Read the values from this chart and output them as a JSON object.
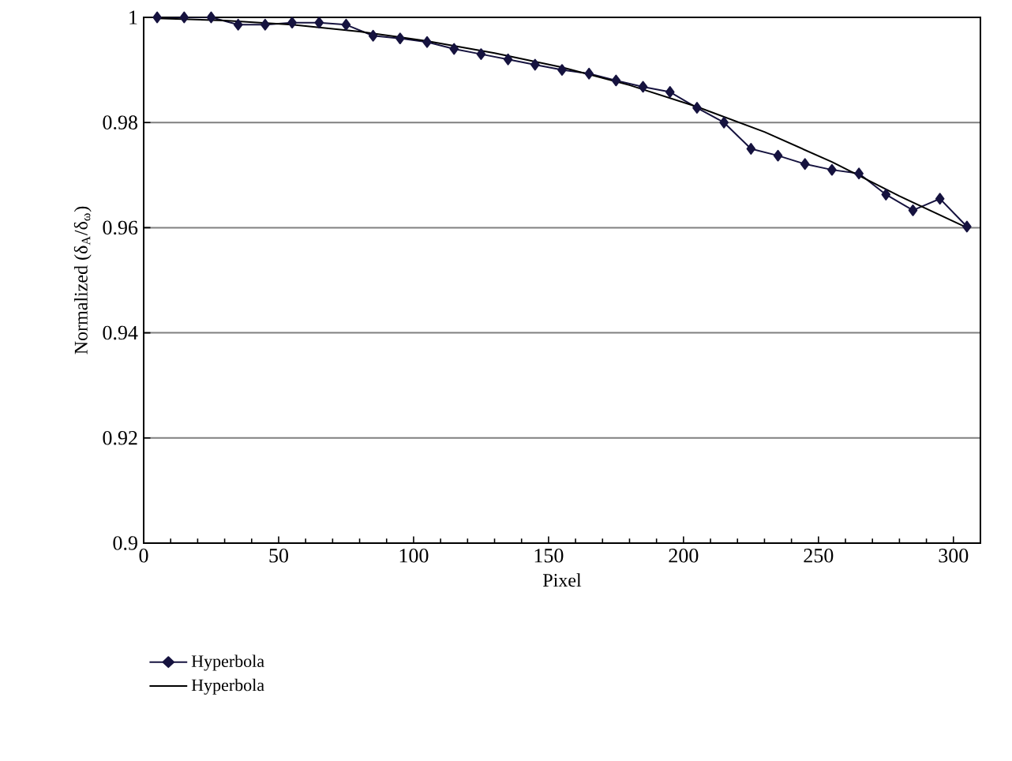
{
  "chart_data": {
    "type": "line",
    "xlabel": "Pixel",
    "ylabel": "Normalized (δ$_{A}$/δ$_{ω}$)",
    "xlim": [
      0,
      310
    ],
    "ylim": [
      0.9,
      1
    ],
    "xticks": [
      0,
      50,
      100,
      150,
      200,
      250,
      300
    ],
    "yticks": [
      0.9,
      0.92,
      0.94,
      0.96,
      0.98,
      1
    ],
    "grid": "y",
    "legend": "bottom left",
    "series": [
      {
        "name": "Hyperbola",
        "color": "#16133f",
        "marker": "diamond",
        "x": [
          5,
          15,
          25,
          35,
          45,
          55,
          65,
          75,
          85,
          95,
          105,
          115,
          125,
          135,
          145,
          155,
          165,
          175,
          185,
          195,
          205,
          215,
          225,
          235,
          245,
          255,
          265,
          275,
          285,
          295,
          305
        ],
        "values": [
          1.0,
          1.0,
          1.0,
          0.9986,
          0.9986,
          0.999,
          0.999,
          0.9986,
          0.9965,
          0.996,
          0.9953,
          0.994,
          0.993,
          0.992,
          0.991,
          0.99,
          0.9893,
          0.988,
          0.9868,
          0.9858,
          0.9828,
          0.98,
          0.975,
          0.9737,
          0.9721,
          0.971,
          0.9703,
          0.9663,
          0.9633,
          0.9655,
          0.9602
        ]
      },
      {
        "name": "Hyperbola",
        "color": "#000000",
        "marker": "none",
        "x": [
          5,
          30,
          55,
          80,
          105,
          130,
          155,
          180,
          205,
          230,
          255,
          280,
          305
        ],
        "values": [
          0.9998,
          0.9994,
          0.9986,
          0.9973,
          0.9955,
          0.9932,
          0.9905,
          0.9871,
          0.983,
          0.9782,
          0.9725,
          0.966,
          0.96
        ]
      }
    ]
  }
}
